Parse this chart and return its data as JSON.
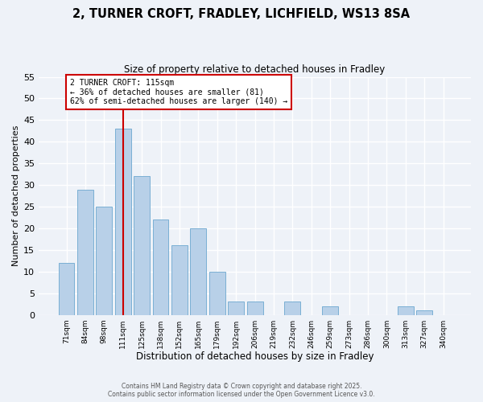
{
  "title_line1": "2, TURNER CROFT, FRADLEY, LICHFIELD, WS13 8SA",
  "title_line2": "Size of property relative to detached houses in Fradley",
  "xlabel": "Distribution of detached houses by size in Fradley",
  "ylabel": "Number of detached properties",
  "bar_color": "#b8d0e8",
  "bar_edge_color": "#7aafd4",
  "bin_labels": [
    "71sqm",
    "84sqm",
    "98sqm",
    "111sqm",
    "125sqm",
    "138sqm",
    "152sqm",
    "165sqm",
    "179sqm",
    "192sqm",
    "206sqm",
    "219sqm",
    "232sqm",
    "246sqm",
    "259sqm",
    "273sqm",
    "286sqm",
    "300sqm",
    "313sqm",
    "327sqm",
    "340sqm"
  ],
  "counts": [
    12,
    29,
    25,
    43,
    32,
    22,
    16,
    20,
    10,
    3,
    3,
    0,
    3,
    0,
    2,
    0,
    0,
    0,
    2,
    1,
    0
  ],
  "ylim": [
    0,
    55
  ],
  "yticks": [
    0,
    5,
    10,
    15,
    20,
    25,
    30,
    35,
    40,
    45,
    50,
    55
  ],
  "property_line_x_label": "111sqm",
  "annotation_title": "2 TURNER CROFT: 115sqm",
  "annotation_line1": "← 36% of detached houses are smaller (81)",
  "annotation_line2": "62% of semi-detached houses are larger (140) →",
  "annotation_box_color": "#ffffff",
  "annotation_box_edge_color": "#cc0000",
  "vline_color": "#cc0000",
  "background_color": "#eef2f8",
  "grid_color": "#ffffff",
  "footer_line1": "Contains HM Land Registry data © Crown copyright and database right 2025.",
  "footer_line2": "Contains public sector information licensed under the Open Government Licence v3.0."
}
